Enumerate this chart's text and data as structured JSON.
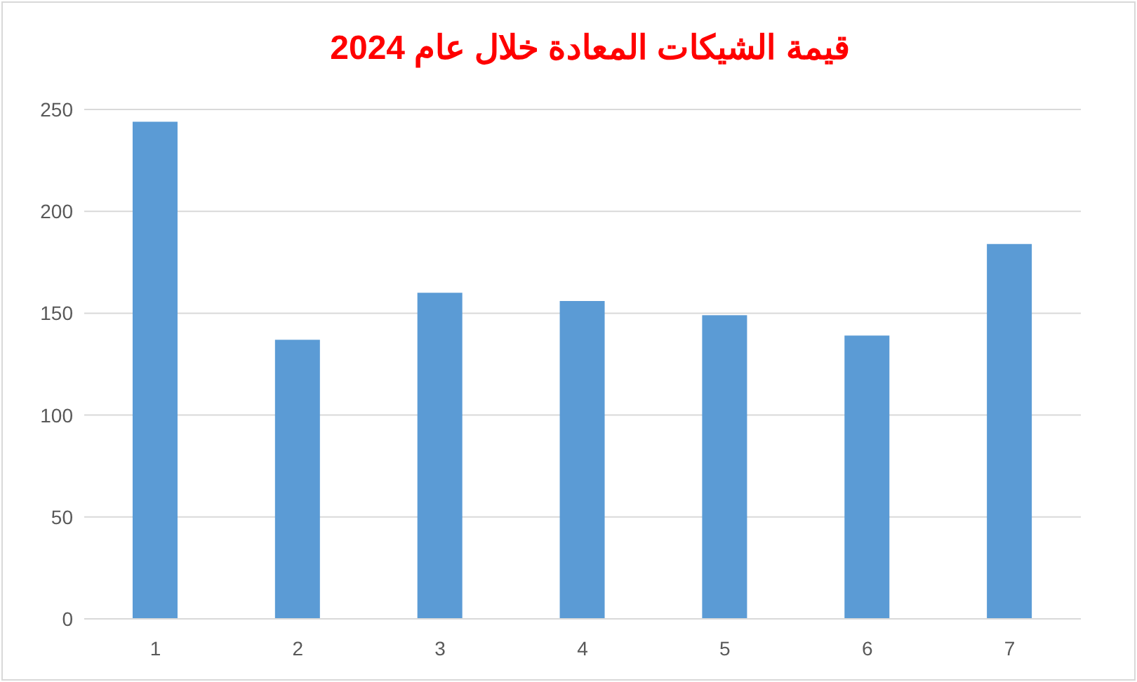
{
  "chart_data": {
    "type": "bar",
    "title": "قيمة الشيكات المعادة خلال عام 2024",
    "categories": [
      "1",
      "2",
      "3",
      "4",
      "5",
      "6",
      "7"
    ],
    "values": [
      244,
      137,
      160,
      156,
      149,
      139,
      184
    ],
    "color": "#5b9bd5",
    "ylim": [
      0,
      250
    ],
    "yticks": [
      0,
      50,
      100,
      150,
      200,
      250
    ],
    "grid": "y"
  }
}
